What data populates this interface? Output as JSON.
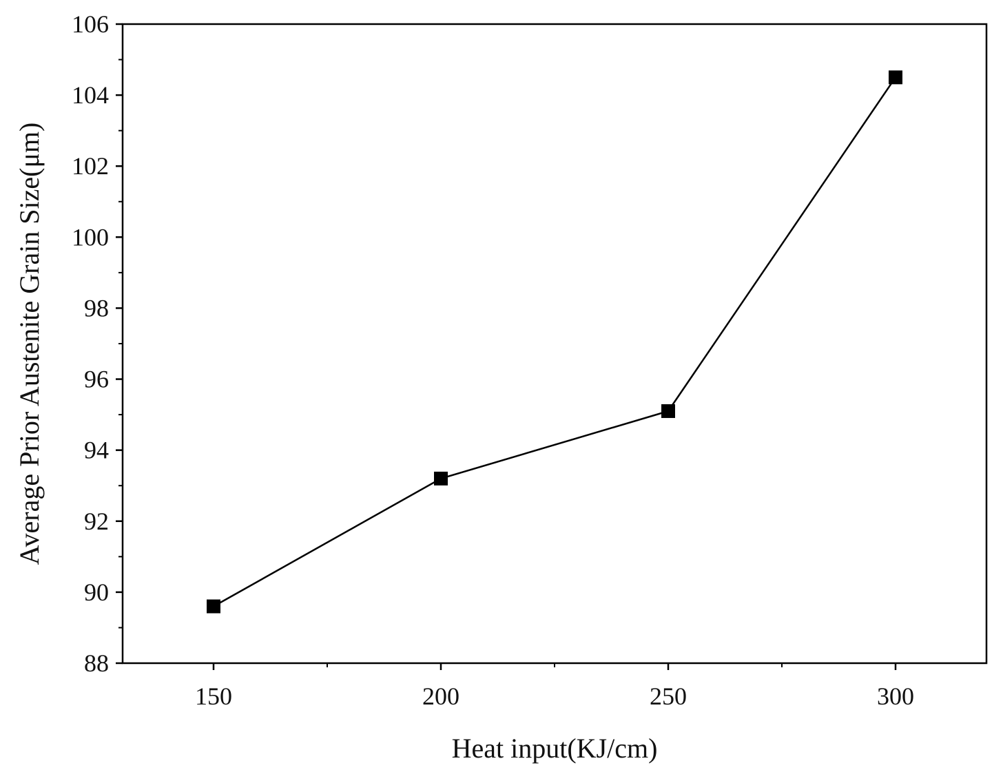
{
  "chart_data": {
    "type": "line",
    "title": "",
    "xlabel": "Heat input(KJ/cm)",
    "ylabel": "Average Prior Austenite Grain Size(μm)",
    "x": [
      150,
      200,
      250,
      300
    ],
    "series": [
      {
        "name": "",
        "values": [
          89.6,
          93.2,
          95.1,
          104.5
        ]
      }
    ],
    "xlim": [
      130,
      320
    ],
    "ylim": [
      88,
      106
    ],
    "xticks": [
      150,
      200,
      250,
      300
    ],
    "xtick_labels": [
      "150",
      "200",
      "250",
      "300"
    ],
    "yticks": [
      88,
      90,
      92,
      94,
      96,
      98,
      100,
      102,
      104,
      106
    ],
    "ytick_labels": [
      "88",
      "90",
      "92",
      "94",
      "96",
      "98",
      "100",
      "102",
      "104",
      "106"
    ],
    "grid": false,
    "legend": "none",
    "marker": "square",
    "colors": {
      "line": "#000000",
      "marker": "#000000",
      "axis": "#000000"
    }
  }
}
